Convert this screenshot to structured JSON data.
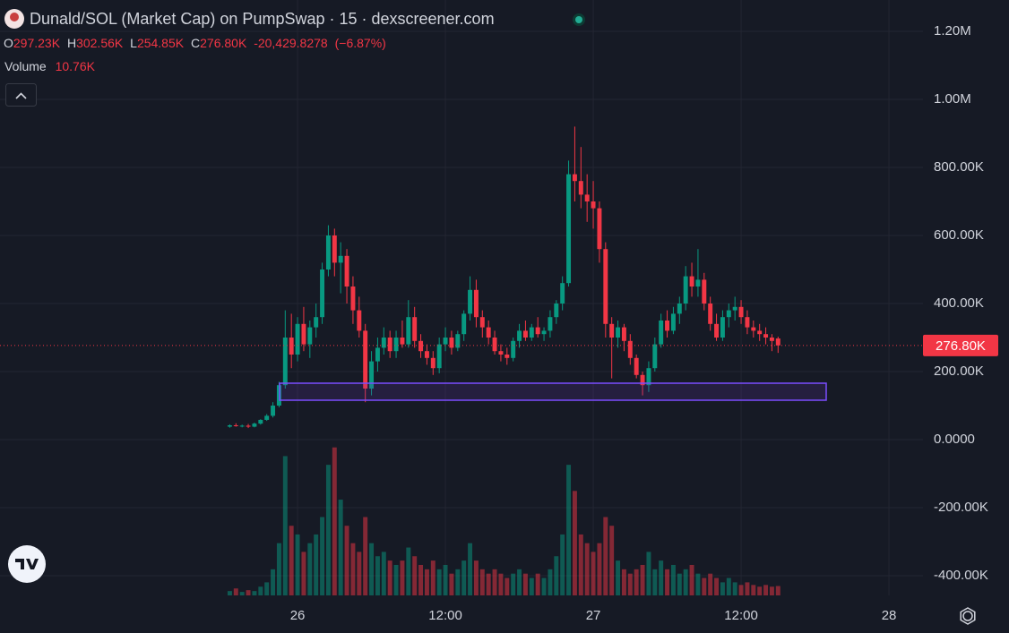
{
  "chart_data": {
    "type": "candlestick",
    "title": "Dunald/SOL (Market Cap) on PumpSwap · 15 · dexscreener.com",
    "legend": {
      "o_label": "O",
      "o_value": "297.23K",
      "h_label": "H",
      "h_value": "302.56K",
      "l_label": "L",
      "l_value": "254.85K",
      "c_label": "C",
      "c_value": "276.80K",
      "change": "-20,429.8278",
      "change_pct": "(−6.87%)",
      "volume_label": "Volume",
      "volume_value": "10.76K"
    },
    "last_price": {
      "value": 276800,
      "label": "276.80K"
    },
    "up_color": "#089981",
    "down_color": "#f23645",
    "grid": true,
    "x": [
      -5.5,
      -5,
      -4.5,
      -4,
      -3.5,
      -3,
      -2.5,
      -2,
      -1.5,
      -1,
      -0.5,
      0,
      0.5,
      1,
      1.5,
      2,
      2.5,
      3,
      3.5,
      4,
      4.5,
      5,
      5.5,
      6,
      6.5,
      7,
      7.5,
      8,
      8.5,
      9,
      9.5,
      10,
      10.5,
      11,
      11.5,
      12,
      12.5,
      13,
      13.5,
      14,
      14.5,
      15,
      15.5,
      16,
      16.5,
      17,
      17.5,
      18,
      18.5,
      19,
      19.5,
      20,
      20.5,
      21,
      21.5,
      22,
      22.5,
      23,
      23.5,
      24,
      24.5,
      25,
      25.5,
      26,
      26.5,
      27,
      27.5,
      28,
      28.5,
      29,
      29.5,
      30,
      30.5,
      31,
      31.5,
      32,
      32.5,
      33,
      33.5,
      34,
      34.5,
      35,
      35.5,
      36,
      36.5,
      37,
      37.5,
      38,
      38.5,
      39
    ],
    "open": [
      38000,
      42000,
      40000,
      41000,
      38000,
      47000,
      58000,
      70000,
      100000,
      160000,
      300000,
      250000,
      340000,
      280000,
      330000,
      360000,
      500000,
      600000,
      520000,
      540000,
      450000,
      380000,
      320000,
      150000,
      230000,
      270000,
      300000,
      260000,
      300000,
      280000,
      360000,
      290000,
      260000,
      240000,
      210000,
      280000,
      300000,
      270000,
      310000,
      370000,
      440000,
      360000,
      330000,
      300000,
      260000,
      250000,
      240000,
      290000,
      320000,
      300000,
      330000,
      310000,
      320000,
      360000,
      400000,
      460000,
      780000,
      760000,
      720000,
      700000,
      680000,
      560000,
      340000,
      300000,
      330000,
      290000,
      240000,
      190000,
      160000,
      210000,
      280000,
      350000,
      320000,
      370000,
      400000,
      480000,
      450000,
      470000,
      400000,
      340000,
      300000,
      360000,
      380000,
      390000,
      360000,
      330000,
      320000,
      310000,
      300000,
      297230
    ],
    "high": [
      45000,
      48000,
      44000,
      46000,
      50000,
      60000,
      75000,
      110000,
      170000,
      380000,
      370000,
      360000,
      390000,
      350000,
      400000,
      520000,
      630000,
      620000,
      580000,
      560000,
      480000,
      420000,
      340000,
      260000,
      300000,
      330000,
      320000,
      320000,
      350000,
      410000,
      390000,
      310000,
      280000,
      260000,
      300000,
      330000,
      320000,
      320000,
      380000,
      480000,
      470000,
      380000,
      350000,
      320000,
      280000,
      270000,
      300000,
      340000,
      350000,
      340000,
      360000,
      330000,
      380000,
      410000,
      480000,
      820000,
      920000,
      860000,
      780000,
      760000,
      700000,
      580000,
      360000,
      350000,
      340000,
      310000,
      250000,
      200000,
      230000,
      300000,
      370000,
      380000,
      390000,
      420000,
      510000,
      520000,
      560000,
      490000,
      420000,
      370000,
      380000,
      400000,
      420000,
      410000,
      380000,
      350000,
      340000,
      330000,
      310000,
      302560
    ],
    "low": [
      35000,
      38000,
      36000,
      34000,
      36000,
      44000,
      55000,
      65000,
      95000,
      150000,
      210000,
      230000,
      260000,
      240000,
      300000,
      340000,
      480000,
      480000,
      430000,
      400000,
      340000,
      300000,
      110000,
      130000,
      200000,
      250000,
      240000,
      240000,
      270000,
      270000,
      270000,
      240000,
      220000,
      190000,
      195000,
      260000,
      250000,
      260000,
      290000,
      350000,
      330000,
      300000,
      280000,
      250000,
      230000,
      220000,
      230000,
      270000,
      290000,
      290000,
      300000,
      290000,
      300000,
      340000,
      380000,
      450000,
      700000,
      680000,
      640000,
      620000,
      520000,
      300000,
      180000,
      270000,
      260000,
      220000,
      180000,
      130000,
      140000,
      200000,
      270000,
      300000,
      310000,
      340000,
      380000,
      420000,
      420000,
      380000,
      320000,
      290000,
      290000,
      330000,
      350000,
      340000,
      310000,
      300000,
      290000,
      280000,
      260000,
      254850
    ],
    "close": [
      42000,
      40000,
      41000,
      38000,
      47000,
      58000,
      70000,
      100000,
      160000,
      300000,
      250000,
      340000,
      280000,
      330000,
      360000,
      500000,
      600000,
      520000,
      540000,
      450000,
      380000,
      320000,
      150000,
      230000,
      270000,
      300000,
      260000,
      300000,
      280000,
      360000,
      290000,
      260000,
      240000,
      210000,
      280000,
      300000,
      270000,
      310000,
      370000,
      440000,
      360000,
      330000,
      300000,
      260000,
      250000,
      240000,
      290000,
      320000,
      300000,
      330000,
      310000,
      320000,
      360000,
      400000,
      460000,
      780000,
      760000,
      720000,
      700000,
      680000,
      560000,
      340000,
      300000,
      330000,
      290000,
      240000,
      190000,
      160000,
      210000,
      280000,
      350000,
      320000,
      370000,
      400000,
      480000,
      450000,
      470000,
      400000,
      340000,
      300000,
      360000,
      380000,
      390000,
      360000,
      330000,
      320000,
      310000,
      300000,
      290000,
      276800
    ],
    "volume": [
      5000,
      8000,
      4000,
      6000,
      5000,
      10000,
      15000,
      30000,
      60000,
      160000,
      80000,
      70000,
      50000,
      60000,
      70000,
      90000,
      150000,
      170000,
      110000,
      80000,
      60000,
      50000,
      90000,
      60000,
      45000,
      50000,
      40000,
      35000,
      40000,
      55000,
      45000,
      35000,
      30000,
      40000,
      30000,
      35000,
      25000,
      30000,
      40000,
      60000,
      40000,
      30000,
      25000,
      30000,
      25000,
      20000,
      25000,
      30000,
      25000,
      20000,
      25000,
      20000,
      30000,
      45000,
      70000,
      150000,
      120000,
      70000,
      60000,
      50000,
      60000,
      90000,
      80000,
      40000,
      30000,
      25000,
      30000,
      35000,
      50000,
      30000,
      40000,
      30000,
      35000,
      25000,
      30000,
      35000,
      25000,
      20000,
      25000,
      20000,
      15000,
      20000,
      15000,
      12000,
      15000,
      12000,
      10000,
      12000,
      10000,
      10760
    ],
    "volume_lim": [
      0,
      180000
    ],
    "xlim": [
      -24.15,
      50.76
    ],
    "xticks": [
      {
        "value": 0,
        "label": "26"
      },
      {
        "value": 12,
        "label": "12:00"
      },
      {
        "value": 24,
        "label": "27"
      },
      {
        "value": 36,
        "label": "12:00"
      },
      {
        "value": 48,
        "label": "28"
      }
    ],
    "ylim": [
      -457900,
      1292100
    ],
    "yticks": [
      {
        "value": 1200000,
        "label": "1.20M"
      },
      {
        "value": 1000000,
        "label": "1.00M"
      },
      {
        "value": 800000,
        "label": "800.00K"
      },
      {
        "value": 600000,
        "label": "600.00K"
      },
      {
        "value": 400000,
        "label": "400.00K"
      },
      {
        "value": 200000,
        "label": "200.00K"
      },
      {
        "value": 0,
        "label": "0.0000"
      },
      {
        "value": -200000,
        "label": "-200.00K"
      },
      {
        "value": -400000,
        "label": "-400.00K"
      }
    ]
  }
}
